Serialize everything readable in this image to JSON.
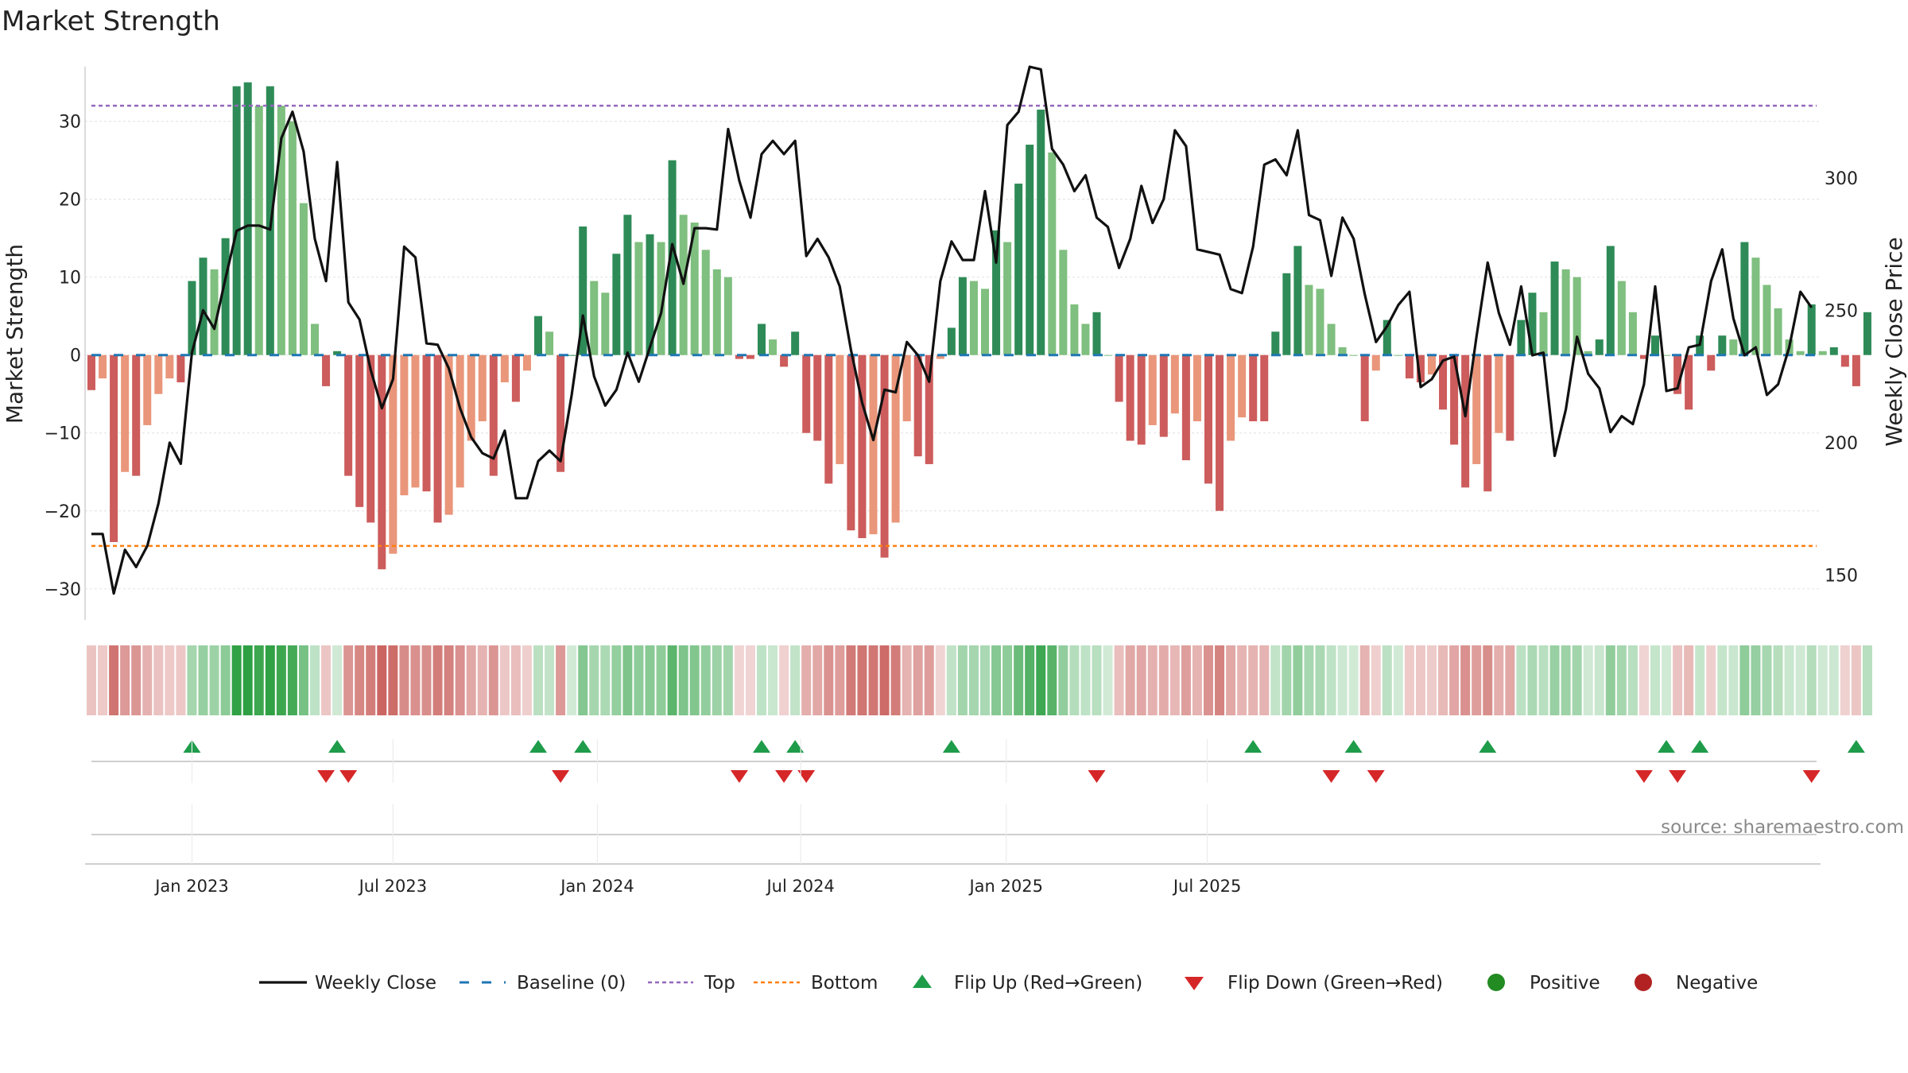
{
  "chart_data": {
    "type": "bar+line",
    "title": "Market Strength",
    "ylabel_left": "Market Strength",
    "ylabel_right": "Weekly Close Price",
    "ylim_left": [
      -34,
      37
    ],
    "ylim_right": [
      133,
      342
    ],
    "yticks_left": [
      "30",
      "20",
      "10",
      "0",
      "−10",
      "−20",
      "−30"
    ],
    "yticks_right": [
      "300",
      "250",
      "200",
      "150"
    ],
    "x_tick_labels": [
      "Jan 2023",
      "Jul 2023",
      "Jan 2024",
      "Jul 2024",
      "Jan 2025",
      "Jul 2025"
    ],
    "top_threshold": 32,
    "bottom_threshold": -24.5,
    "strength": [
      -4.5,
      -3,
      -24,
      -15,
      -15.5,
      -9,
      -5,
      -3,
      -3.5,
      9.5,
      12.5,
      11,
      15,
      34.5,
      35,
      32,
      34.5,
      32,
      30,
      19.5,
      4,
      -4,
      0.5,
      -15.5,
      -19.5,
      -21.5,
      -27.5,
      -25.5,
      -18,
      -17,
      -17.5,
      -21.5,
      -20.5,
      -17,
      -11,
      -8.5,
      -15.5,
      -3.5,
      -6,
      -2,
      5,
      3,
      -15,
      0,
      16.5,
      9.5,
      8,
      13,
      18,
      14.5,
      15.5,
      14.5,
      25,
      18,
      17,
      13.5,
      11,
      10,
      -0.5,
      -0.5,
      4,
      2,
      -1.5,
      3,
      -10,
      -11,
      -16.5,
      -14,
      -22.5,
      -23.5,
      -23,
      -26,
      -21.5,
      -8.5,
      -13,
      -14,
      -0.5,
      3.5,
      10,
      9.5,
      8.5,
      16,
      14.5,
      22,
      27,
      31.5,
      26,
      13.5,
      6.5,
      4,
      5.5,
      0,
      -6,
      -11,
      -11.5,
      -9,
      -10.5,
      -7.5,
      -13.5,
      -8.5,
      -16.5,
      -20,
      -11,
      -8,
      -8.5,
      -8.5,
      3,
      10.5,
      14,
      9,
      8.5,
      4,
      1,
      0,
      -8.5,
      -2,
      4.5,
      0,
      -3,
      -3.5,
      -2.5,
      -7,
      -11.5,
      -17,
      -14,
      -17.5,
      -10,
      -11,
      4.5,
      8,
      5.5,
      12,
      11,
      10,
      0.5,
      2,
      14,
      9.5,
      5.5,
      -0.5,
      2.5,
      0,
      -5,
      -7,
      2.5,
      -2,
      2.5,
      2,
      14.5,
      12.5,
      9,
      6,
      2,
      0.5,
      6.5,
      0.5,
      1,
      -1.5,
      -4,
      5.5
    ],
    "weekly_close": [
      165.5,
      165.5,
      143,
      159.5,
      153,
      161,
      177,
      200,
      192,
      234,
      250,
      243,
      262,
      280,
      282,
      282,
      280.5,
      315,
      325,
      310,
      277,
      261,
      306,
      253,
      246.5,
      227.5,
      213,
      224,
      274,
      270,
      237.5,
      237,
      228,
      213,
      202,
      196,
      194,
      204.5,
      179,
      179,
      193,
      197,
      193,
      218,
      248,
      225,
      214,
      220,
      234,
      223,
      236,
      249,
      275,
      260,
      281,
      281,
      280.5,
      318.5,
      299,
      285,
      309,
      314,
      309,
      314,
      270.5,
      277,
      270,
      259,
      235,
      215,
      201,
      220,
      219,
      238,
      233,
      223,
      261,
      276,
      269,
      269,
      295,
      268,
      320,
      325,
      342,
      341,
      311,
      305,
      295,
      301,
      285,
      281.5,
      266,
      277,
      297,
      283,
      292,
      318,
      312,
      273,
      272,
      271,
      258,
      256.5,
      274,
      305,
      307,
      301,
      318,
      286,
      284,
      263,
      285,
      277,
      256,
      238,
      244,
      252,
      257,
      221,
      224,
      231,
      232.5,
      210,
      240,
      268,
      249,
      237,
      259,
      233,
      234,
      195,
      212.5,
      240,
      226,
      220.5,
      204,
      210,
      207,
      222,
      259,
      219.5,
      220.5,
      236,
      237,
      261,
      273,
      247,
      233,
      236,
      218,
      222,
      236,
      257,
      251
    ],
    "flip_up": [
      9,
      22,
      40,
      44,
      60,
      63,
      77,
      104,
      113,
      125,
      141,
      144,
      158
    ],
    "flip_down": [
      21,
      23,
      42,
      58,
      62,
      64,
      90,
      111,
      115,
      139,
      142,
      154
    ],
    "legend": [
      "Weekly Close",
      "Baseline (0)",
      "Top",
      "Bottom",
      "Flip Up (Red→Green)",
      "Flip Down (Green→Red)",
      "Positive",
      "Negative"
    ],
    "source": "source: sharemaestro.com",
    "colors": {
      "strong_pos": "#2e8b57",
      "weak_pos": "#7fbf7f",
      "strong_neg": "#cd5c5c",
      "weak_neg": "#e9967a",
      "line": "#111111",
      "baseline": "#1f77b4",
      "top": "#9467bd",
      "bottom": "#ff7f0e",
      "flip_up": "#1e9c4a",
      "flip_down": "#d62728",
      "positive_dot": "#228b22",
      "negative_dot": "#b22222"
    }
  }
}
